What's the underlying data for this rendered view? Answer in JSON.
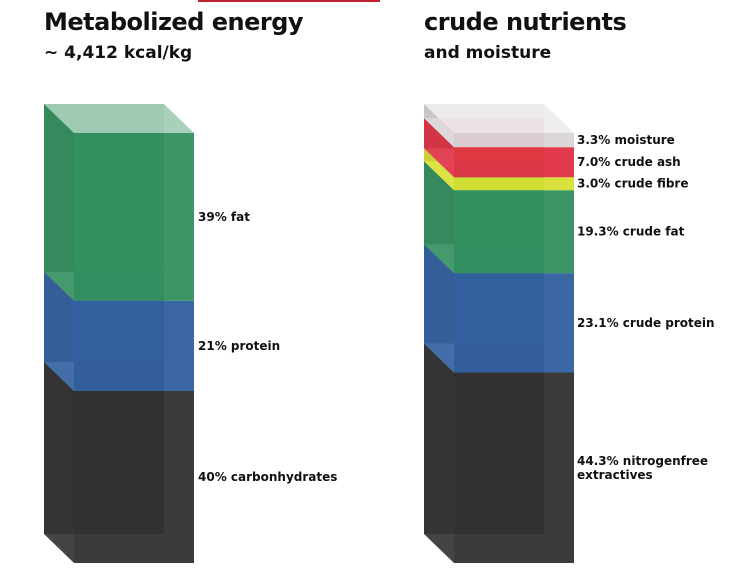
{
  "colors": {
    "fat": "#2b8c58",
    "protein": "#2a5a9c",
    "carbs": "#2a2a2a",
    "moisture": "#d8d3d4",
    "ash": "#df2a3e",
    "fibre": "#d6e02b",
    "accent": "#c0202f"
  },
  "left": {
    "title": "Metabolized energy",
    "subtitle": "~ 4,412 kcal/kg"
  },
  "right": {
    "title": "crude nutrients",
    "subtitle": "and moisture"
  },
  "chart_data": [
    {
      "type": "bar",
      "title": "Metabolized energy",
      "subtitle": "~ 4,412 kcal/kg",
      "stacked": true,
      "series": [
        {
          "value": 40,
          "label": "40% carbonhydrates",
          "color_key": "carbs"
        },
        {
          "value": 21,
          "label": "21% protein",
          "color_key": "protein"
        },
        {
          "value": 39,
          "label": "39% fat",
          "color_key": "fat"
        }
      ]
    },
    {
      "type": "bar",
      "title": "crude nutrients",
      "subtitle": "and moisture",
      "stacked": true,
      "series": [
        {
          "value": 44.3,
          "label": "44.3% nitrogenfree extractives",
          "color_key": "carbs"
        },
        {
          "value": 23.1,
          "label": "23.1% crude protein",
          "color_key": "protein"
        },
        {
          "value": 19.3,
          "label": "19.3% crude fat",
          "color_key": "fat"
        },
        {
          "value": 3.0,
          "label": "3.0% crude fibre",
          "color_key": "fibre"
        },
        {
          "value": 7.0,
          "label": "7.0% crude ash",
          "color_key": "ash"
        },
        {
          "value": 3.3,
          "label": "3.3% moisture",
          "color_key": "moisture"
        }
      ]
    }
  ]
}
